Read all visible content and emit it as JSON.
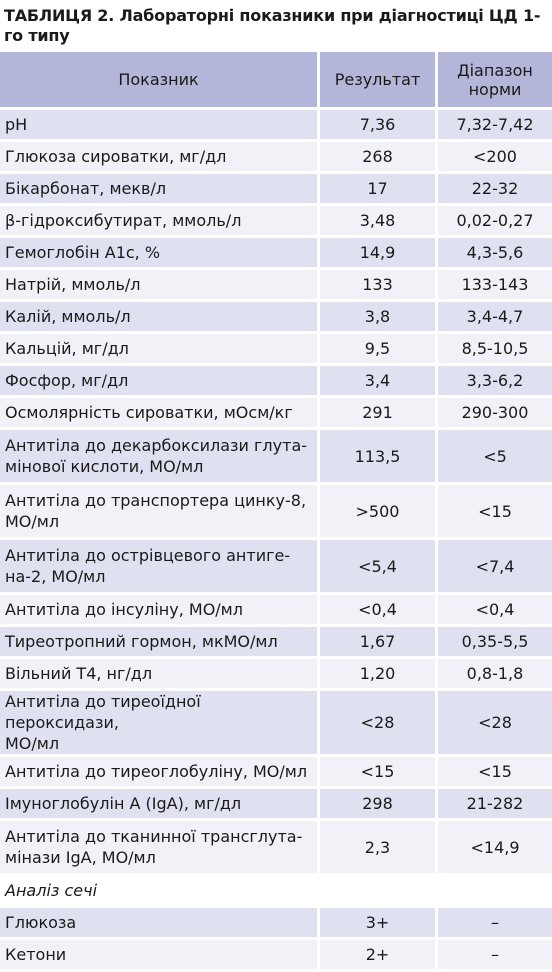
{
  "title": "ТАБЛИЦЯ 2. Лабораторні показники при діагностиці ЦД 1-го типу",
  "headers": {
    "indicator": "Показник",
    "result": "Результат",
    "range_line1": "Діапазон",
    "range_line2": "норми"
  },
  "rows": [
    {
      "lines": [
        "pH"
      ],
      "result": "7,36",
      "range": "7,32-7,42"
    },
    {
      "lines": [
        "Глюкоза сироватки, мг/дл"
      ],
      "result": "268",
      "range": "<200"
    },
    {
      "lines": [
        "Бікарбонат, мекв/л"
      ],
      "result": "17",
      "range": "22-32"
    },
    {
      "lines": [
        "β-гідроксибутират, ммоль/л"
      ],
      "result": "3,48",
      "range": "0,02-0,27"
    },
    {
      "lines": [
        "Гемоглобін А1с, %"
      ],
      "result": "14,9",
      "range": "4,3-5,6"
    },
    {
      "lines": [
        "Натрій, ммоль/л"
      ],
      "result": "133",
      "range": "133-143"
    },
    {
      "lines": [
        "Калій, ммоль/л"
      ],
      "result": "3,8",
      "range": "3,4-4,7"
    },
    {
      "lines": [
        "Кальцій, мг/дл"
      ],
      "result": "9,5",
      "range": "8,5-10,5"
    },
    {
      "lines": [
        "Фосфор, мг/дл"
      ],
      "result": "3,4",
      "range": "3,3-6,2"
    },
    {
      "lines": [
        "Осмолярність сироватки, мОсм/кг"
      ],
      "result": "291",
      "range": "290-300"
    },
    {
      "lines": [
        "Антитіла до декарбоксилази глута-",
        "мінової кислоти, МО/мл"
      ],
      "result": "113,5",
      "range": "<5"
    },
    {
      "lines": [
        "Антитіла до транспортера цинку-8,",
        "МО/мл"
      ],
      "result": ">500",
      "range": "<15"
    },
    {
      "lines": [
        "Антитіла до острівцевого антиге-",
        "на-2, МО/мл"
      ],
      "result": "<5,4",
      "range": "<7,4"
    },
    {
      "lines": [
        "Антитіла до інсуліну, МО/мл"
      ],
      "result": "<0,4",
      "range": "<0,4"
    },
    {
      "lines": [
        "Тиреотропний гормон, мкМО/мл"
      ],
      "result": "1,67",
      "range": "0,35-5,5"
    },
    {
      "lines": [
        "Вільний Т4, нг/дл"
      ],
      "result": "1,20",
      "range": "0,8-1,8"
    },
    {
      "lines": [
        "Антитіла до тиреоїдної пероксидази,",
        "МО/мл"
      ],
      "result": "<28",
      "range": "<28"
    },
    {
      "lines": [
        "Антитіла до тиреоглобуліну, МО/мл"
      ],
      "result": "<15",
      "range": "<15"
    },
    {
      "lines": [
        "Імуноглобулін А (IgA), мг/дл"
      ],
      "result": "298",
      "range": "21-282"
    },
    {
      "lines": [
        "Антитіла до тканинної трансглута-",
        "мінази IgA, МО/мл"
      ],
      "result": "2,3",
      "range": "<14,9"
    }
  ],
  "urine_section": {
    "label": "Аналіз сечі",
    "rows": [
      {
        "lines": [
          "Глюкоза"
        ],
        "result": "3+",
        "range": "–"
      },
      {
        "lines": [
          "Кетони"
        ],
        "result": "2+",
        "range": "–"
      }
    ]
  }
}
